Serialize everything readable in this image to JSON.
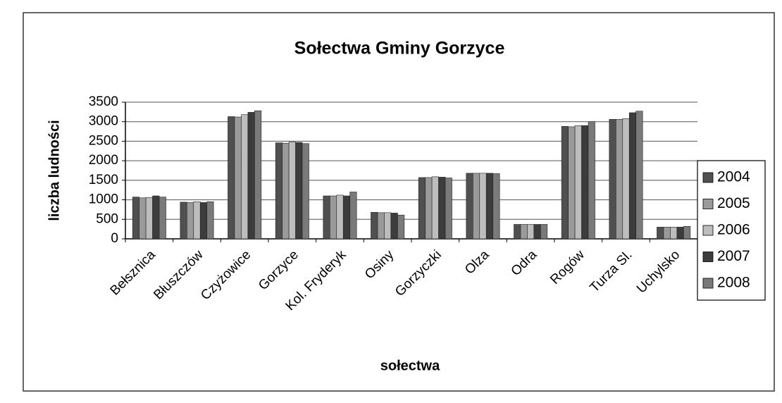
{
  "chart_data": {
    "type": "bar",
    "title": "Sołectwa Gminy Gorzyce",
    "x_label": "sołectwa",
    "y_label": "liczba ludności",
    "categories": [
      "Bełsznica",
      "Błuszczów",
      "Czyżowice",
      "Gorzyce",
      "Kol. Fryderyk",
      "Osiny",
      "Gorzyczki",
      "Olza",
      "Odra",
      "Rogów",
      "Turza Sl.",
      "Uchylsko"
    ],
    "series": [
      {
        "name": "2004",
        "color": "#505050",
        "values": [
          1070,
          940,
          3130,
          2460,
          1100,
          680,
          1570,
          1680,
          370,
          2880,
          3060,
          300
        ]
      },
      {
        "name": "2005",
        "color": "#9a9a9a",
        "values": [
          1050,
          930,
          3120,
          2450,
          1100,
          670,
          1570,
          1680,
          370,
          2870,
          3060,
          300
        ]
      },
      {
        "name": "2006",
        "color": "#bdbdbd",
        "values": [
          1060,
          950,
          3180,
          2480,
          1120,
          670,
          1590,
          1680,
          370,
          2900,
          3080,
          300
        ]
      },
      {
        "name": "2007",
        "color": "#3c3c3c",
        "values": [
          1100,
          930,
          3240,
          2470,
          1100,
          660,
          1580,
          1680,
          370,
          2900,
          3230,
          300
        ]
      },
      {
        "name": "2008",
        "color": "#7a7a7a",
        "values": [
          1070,
          950,
          3280,
          2440,
          1200,
          610,
          1560,
          1670,
          370,
          3000,
          3270,
          320
        ]
      }
    ],
    "ylim": [
      0,
      3500
    ],
    "yticks": [
      0,
      500,
      1000,
      1500,
      2000,
      2500,
      3000,
      3500
    ],
    "grid": true,
    "legend": "right"
  }
}
